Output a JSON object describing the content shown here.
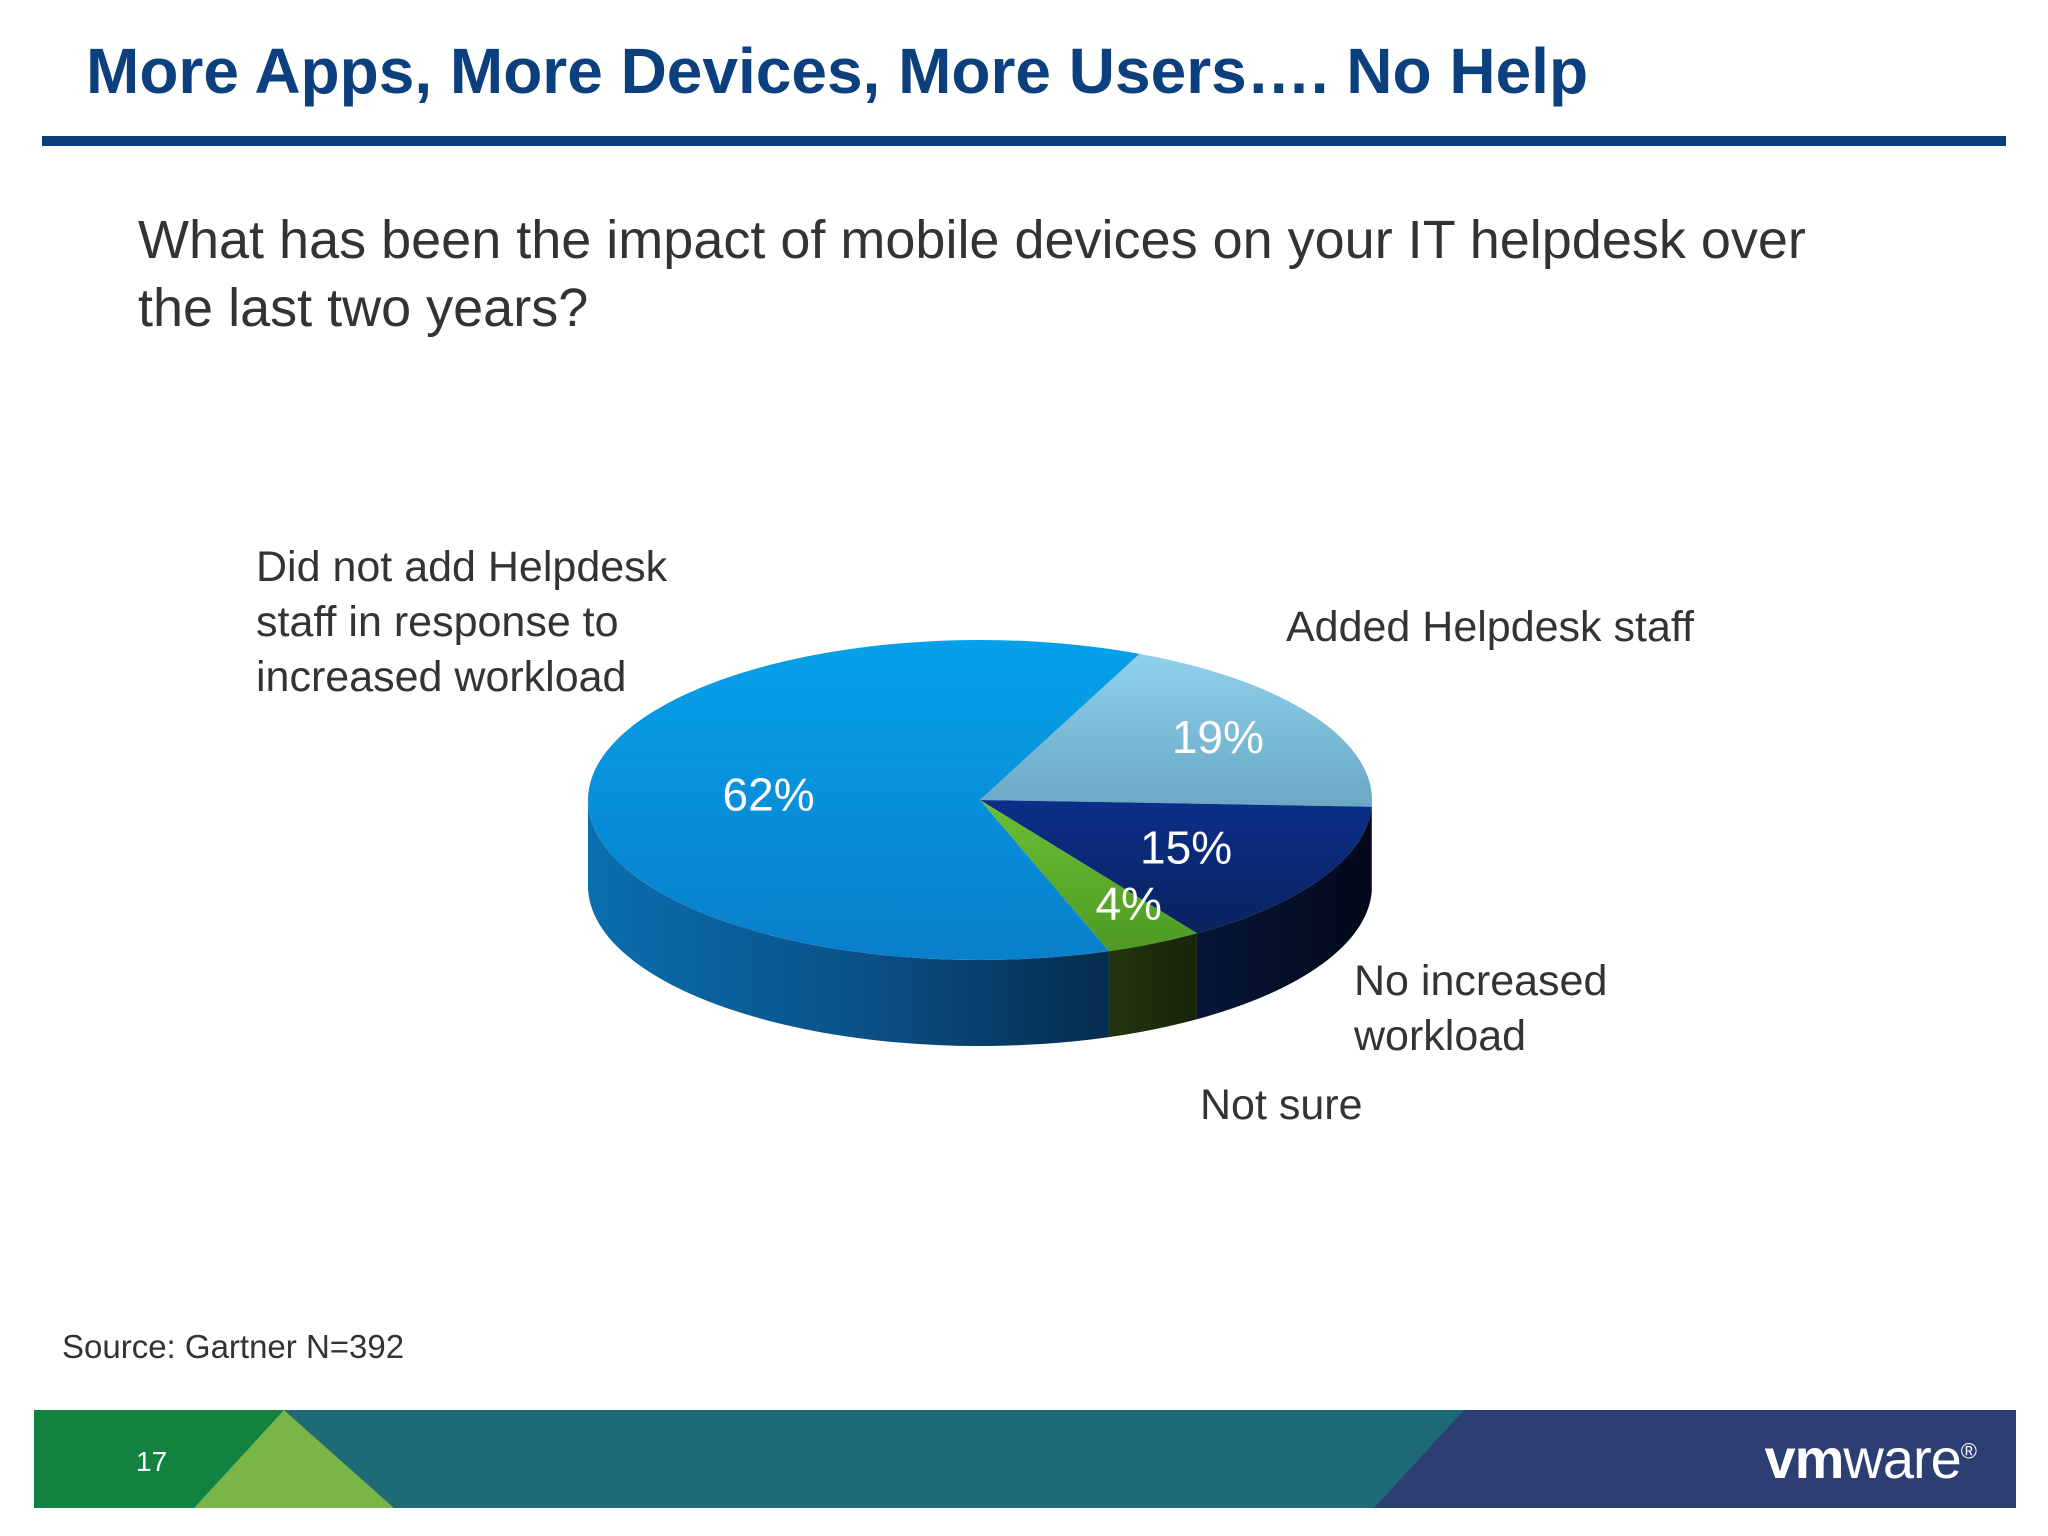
{
  "title": "More Apps, More Devices, More Users…. No Help",
  "question": "What has been the impact of mobile devices on your IT helpdesk over the last two years?",
  "colors": {
    "title": "#0b3f7e",
    "did_not_add": "#0a8fd6",
    "added": "#79b6d1",
    "no_increase": "#0d2f7a",
    "not_sure": "#5aa92a"
  },
  "chart_data": {
    "type": "pie",
    "style": "3d",
    "title": "",
    "categories": [
      "Did not add Helpdesk staff in response to increased workload",
      "Added Helpdesk staff",
      "No increased workload",
      "Not sure"
    ],
    "values": [
      62,
      19,
      15,
      4
    ],
    "value_labels": [
      "62%",
      "19%",
      "15%",
      "4%"
    ],
    "category_labels": {
      "did_not_add": [
        "Did not add Helpdesk",
        "staff in response to",
        "increased workload"
      ],
      "added": [
        "Added Helpdesk staff"
      ],
      "no_increase": [
        "No increased",
        "workload"
      ],
      "not_sure": [
        "Not sure"
      ]
    }
  },
  "source": "Source: Gartner N=392",
  "footer": {
    "page_number": "17",
    "logo_bold": "vm",
    "logo_light": "ware",
    "logo_mark": "®"
  }
}
